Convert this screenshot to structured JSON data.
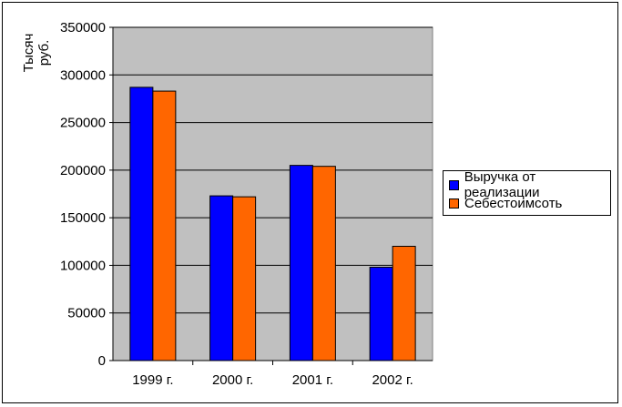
{
  "chart_data": {
    "type": "bar",
    "title": "",
    "ylabel": "Тысяч руб.",
    "ylabel_lines": [
      "Тысяч",
      "руб."
    ],
    "xlabel": "",
    "categories": [
      "1999 г.",
      "2000 г.",
      "2001 г.",
      "2002 г."
    ],
    "series": [
      {
        "name": "Выручка от реализации",
        "color": "#0000FF",
        "values": [
          287000,
          173000,
          205000,
          98000
        ]
      },
      {
        "name": "Себестоимсоть",
        "color": "#FF6600",
        "values": [
          283000,
          172000,
          204000,
          120000
        ]
      }
    ],
    "ylim": [
      0,
      350000
    ],
    "yticks": [
      "0",
      "50000",
      "100000",
      "150000",
      "200000",
      "250000",
      "300000",
      "350000"
    ],
    "grid": true,
    "plot_background": "#C0C0C0",
    "legend_position": "right"
  }
}
